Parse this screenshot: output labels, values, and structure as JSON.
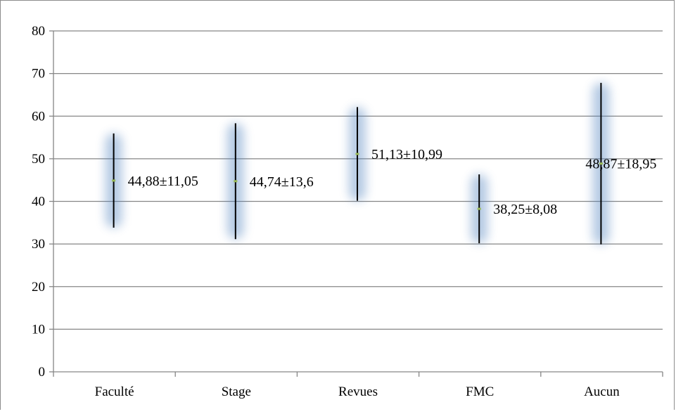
{
  "chart_data": {
    "type": "error-bar",
    "title": "",
    "xlabel": "",
    "ylabel": "",
    "ylim": [
      0,
      80
    ],
    "yticks": [
      0,
      10,
      20,
      30,
      40,
      50,
      60,
      70,
      80
    ],
    "grid": true,
    "categories": [
      "Faculté",
      "Stage",
      "Revues",
      "FMC",
      "Aucun"
    ],
    "series": [
      {
        "mean": [
          44.88,
          44.74,
          51.13,
          38.25,
          48.87
        ],
        "sd": [
          11.05,
          13.6,
          10.99,
          8.08,
          18.95
        ],
        "low": [
          33.83,
          31.14,
          40.14,
          30.17,
          29.92
        ],
        "high": [
          55.93,
          58.34,
          62.12,
          46.33,
          67.82
        ],
        "labels": [
          "44,88±11,05",
          "44,74±13,6",
          "51,13±10,99",
          "38,25±8,08",
          "48,87±18,95"
        ]
      }
    ],
    "colors": {
      "bar": "#000000",
      "marker": "#9bbb59",
      "glow": "#4f81bd",
      "grid": "#868686"
    }
  }
}
